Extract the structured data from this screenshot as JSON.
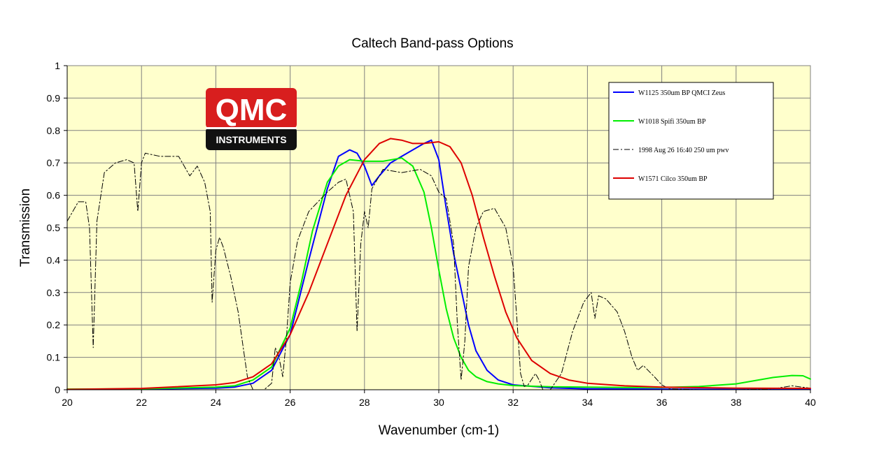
{
  "chart_data": {
    "type": "line",
    "title": "Caltech Band-pass Options",
    "xlabel": "Wavenumber  (cm-1)",
    "ylabel": "Transmission",
    "xlim": [
      20,
      40
    ],
    "ylim": [
      0,
      1
    ],
    "x_ticks": [
      20,
      22,
      24,
      26,
      28,
      30,
      32,
      34,
      36,
      38,
      40
    ],
    "y_ticks": [
      0,
      0.1,
      0.2,
      0.3,
      0.4,
      0.5,
      0.6,
      0.7,
      0.8,
      0.9,
      1
    ],
    "y_tick_labels": [
      "0",
      "0.1",
      "0.2",
      "0.3",
      "0.4",
      "0.5",
      "0.6",
      "0.7",
      "0.8",
      "0.9",
      "1"
    ],
    "grid": true,
    "plot_background": "#ffffcc",
    "legend_position": "top-right",
    "series": [
      {
        "name": "W1125 350um BP QMCI Zeus",
        "color": "#0000ff",
        "style": "solid",
        "width": 2,
        "x": [
          20,
          22,
          24,
          24.5,
          25,
          25.5,
          26,
          26.5,
          27,
          27.3,
          27.6,
          27.8,
          28,
          28.2,
          28.4,
          28.7,
          29,
          29.3,
          29.6,
          29.8,
          30,
          30.2,
          30.4,
          30.6,
          30.8,
          31,
          31.3,
          31.6,
          32,
          33,
          34,
          36,
          38,
          40
        ],
        "y": [
          0.001,
          0.002,
          0.005,
          0.008,
          0.02,
          0.06,
          0.17,
          0.4,
          0.62,
          0.72,
          0.74,
          0.73,
          0.69,
          0.63,
          0.66,
          0.7,
          0.72,
          0.74,
          0.76,
          0.77,
          0.71,
          0.56,
          0.42,
          0.31,
          0.2,
          0.12,
          0.06,
          0.03,
          0.015,
          0.006,
          0.003,
          0.002,
          0.001,
          0.001
        ]
      },
      {
        "name": "W1018 Spifi 350um BP",
        "color": "#00ee00",
        "style": "solid",
        "width": 2,
        "x": [
          20,
          22,
          24,
          24.5,
          25,
          25.5,
          26,
          26.3,
          26.6,
          27,
          27.3,
          27.6,
          28,
          28.5,
          29,
          29.3,
          29.6,
          29.8,
          30,
          30.2,
          30.4,
          30.6,
          30.8,
          31,
          31.3,
          31.6,
          32,
          33,
          34,
          35,
          36,
          37,
          38,
          38.5,
          39,
          39.5,
          39.8,
          40
        ],
        "y": [
          0.002,
          0.003,
          0.008,
          0.012,
          0.03,
          0.07,
          0.19,
          0.33,
          0.49,
          0.64,
          0.69,
          0.71,
          0.705,
          0.705,
          0.715,
          0.69,
          0.61,
          0.5,
          0.37,
          0.25,
          0.16,
          0.1,
          0.06,
          0.04,
          0.025,
          0.018,
          0.013,
          0.009,
          0.008,
          0.007,
          0.007,
          0.01,
          0.018,
          0.028,
          0.038,
          0.044,
          0.043,
          0.033
        ]
      },
      {
        "name": "1998 Aug 26 16:40 250 um pwv",
        "color": "#000000",
        "style": "dashdot",
        "width": 1,
        "x": [
          20,
          20.3,
          20.5,
          20.6,
          20.7,
          20.8,
          21,
          21.3,
          21.6,
          21.8,
          21.9,
          22,
          22.1,
          22.5,
          23,
          23.3,
          23.5,
          23.7,
          23.85,
          23.9,
          24,
          24.1,
          24.2,
          24.4,
          24.6,
          24.75,
          24.85,
          25,
          25.3,
          25.5,
          25.6,
          25.7,
          25.8,
          25.9,
          26,
          26.2,
          26.5,
          27,
          27.3,
          27.5,
          27.7,
          27.8,
          27.9,
          28,
          28.1,
          28.2,
          28.5,
          29,
          29.5,
          29.8,
          30,
          30.2,
          30.4,
          30.5,
          30.6,
          30.7,
          30.8,
          31,
          31.2,
          31.5,
          31.8,
          32,
          32.1,
          32.2,
          32.3,
          32.4,
          32.6,
          32.7,
          32.8,
          33,
          33.3,
          33.6,
          33.9,
          34.1,
          34.2,
          34.3,
          34.5,
          34.8,
          35,
          35.2,
          35.35,
          35.5,
          35.8,
          36,
          36.2,
          37,
          38,
          39,
          39.5,
          40
        ],
        "y": [
          0.52,
          0.58,
          0.58,
          0.5,
          0.13,
          0.52,
          0.67,
          0.7,
          0.71,
          0.7,
          0.55,
          0.7,
          0.73,
          0.72,
          0.72,
          0.66,
          0.69,
          0.64,
          0.55,
          0.27,
          0.43,
          0.47,
          0.44,
          0.35,
          0.24,
          0.12,
          0.04,
          0.0,
          0.0,
          0.02,
          0.13,
          0.1,
          0.04,
          0.16,
          0.33,
          0.46,
          0.55,
          0.61,
          0.64,
          0.65,
          0.55,
          0.18,
          0.45,
          0.55,
          0.5,
          0.62,
          0.68,
          0.67,
          0.68,
          0.66,
          0.61,
          0.59,
          0.45,
          0.2,
          0.03,
          0.15,
          0.38,
          0.5,
          0.55,
          0.56,
          0.5,
          0.38,
          0.22,
          0.05,
          0.01,
          0.015,
          0.05,
          0.03,
          0.0,
          0.0,
          0.05,
          0.18,
          0.27,
          0.3,
          0.22,
          0.29,
          0.28,
          0.24,
          0.18,
          0.1,
          0.06,
          0.075,
          0.04,
          0.015,
          0.003,
          0.0,
          0.0,
          0.003,
          0.012,
          0.005
        ]
      },
      {
        "name": "W1571 Cilco 350um BP",
        "color": "#dd0000",
        "style": "solid",
        "width": 2,
        "x": [
          20,
          22,
          24,
          24.5,
          25,
          25.5,
          26,
          26.5,
          27,
          27.5,
          28,
          28.4,
          28.7,
          29,
          29.3,
          29.6,
          30,
          30.3,
          30.6,
          30.9,
          31.2,
          31.5,
          31.8,
          32.1,
          32.5,
          33,
          33.5,
          34,
          35,
          36,
          38,
          40
        ],
        "y": [
          0.001,
          0.004,
          0.015,
          0.022,
          0.04,
          0.08,
          0.17,
          0.3,
          0.45,
          0.6,
          0.71,
          0.76,
          0.775,
          0.77,
          0.76,
          0.76,
          0.765,
          0.75,
          0.7,
          0.6,
          0.47,
          0.35,
          0.24,
          0.16,
          0.09,
          0.05,
          0.03,
          0.02,
          0.012,
          0.008,
          0.005,
          0.004
        ]
      }
    ]
  },
  "logo": {
    "top": "QMC",
    "bottom": "INSTRUMENTS",
    "color_top": "#d81e1e",
    "color_bottom": "#111111"
  }
}
